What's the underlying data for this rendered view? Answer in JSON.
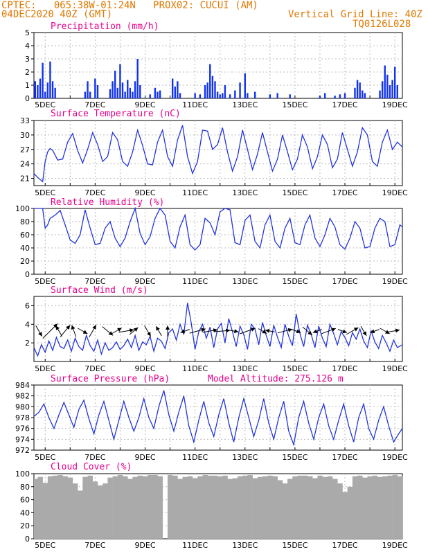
{
  "header": {
    "line1_left": "CPTEC:   065:38W-01:24N   PROX02: CUCUI (AM)",
    "line2_left": "04DEC2020 40Z (GMT)",
    "line2_right": "Vertical Grid Line: 40Z",
    "line3_right": "TQ0126L028"
  },
  "colors": {
    "series": "#2233dd",
    "bars": "#1133ee",
    "cloud": "#aaaaaa",
    "title": "#e8008a",
    "header": "#e07800"
  },
  "chart_data": [
    {
      "id": "precip",
      "type": "bar",
      "title": "Precipitation (mm/h)",
      "ylim": [
        0,
        5
      ],
      "yticks": [
        0,
        1,
        2,
        3,
        4,
        5
      ],
      "x_ticks": [
        "5DEC",
        "7DEC",
        "9DEC",
        "11DEC",
        "13DEC",
        "15DEC",
        "17DEC",
        "19DEC"
      ],
      "x_start_day": 4.55,
      "x_end_day": 19.3,
      "x": [
        4.6,
        4.7,
        4.8,
        4.9,
        5.0,
        5.1,
        5.2,
        5.3,
        5.4,
        6.6,
        6.7,
        6.8,
        7.0,
        7.1,
        7.6,
        7.7,
        7.8,
        7.9,
        8.0,
        8.1,
        8.2,
        8.3,
        8.4,
        8.5,
        8.6,
        8.7,
        8.8,
        9.2,
        9.4,
        9.5,
        9.6,
        10.1,
        10.2,
        10.3,
        10.4,
        11.0,
        11.2,
        11.4,
        11.5,
        11.6,
        11.7,
        11.8,
        11.9,
        12.0,
        12.1,
        12.2,
        12.4,
        12.6,
        12.8,
        13.0,
        13.1,
        13.4,
        14.0,
        14.3,
        14.8,
        16.0,
        16.2,
        16.6,
        16.8,
        17.0,
        17.4,
        17.5,
        17.6,
        17.7,
        17.8,
        18.4,
        18.5,
        18.6,
        18.7,
        18.8,
        18.9,
        19.0,
        19.1
      ],
      "values": [
        1.3,
        1.0,
        1.5,
        2.7,
        0.5,
        1.2,
        2.8,
        1.3,
        0.8,
        0.5,
        1.3,
        0.5,
        1.5,
        1.0,
        0.7,
        1.3,
        2.1,
        0.8,
        2.6,
        1.2,
        0.5,
        1.4,
        0.8,
        0.5,
        1.3,
        3.0,
        1.0,
        0.3,
        0.8,
        0.5,
        0.6,
        1.5,
        0.9,
        1.3,
        0.4,
        0.4,
        0.3,
        1.0,
        1.2,
        2.6,
        1.7,
        1.3,
        0.5,
        0.3,
        0.4,
        1.0,
        0.3,
        0.6,
        1.2,
        1.9,
        0.4,
        0.5,
        0.3,
        0.4,
        0.3,
        0.2,
        0.4,
        0.2,
        0.3,
        0.4,
        0.8,
        1.4,
        1.2,
        0.6,
        0.4,
        0.6,
        1.3,
        2.5,
        1.8,
        1.0,
        1.4,
        2.4,
        1.0
      ]
    },
    {
      "id": "temp",
      "type": "line",
      "title": "Surface Temperature (nC)",
      "ylim": [
        19.5,
        33
      ],
      "yticks": [
        21,
        24,
        27,
        30,
        33
      ],
      "x_ticks": [
        "5DEC",
        "7DEC",
        "9DEC",
        "11DEC",
        "13DEC",
        "15DEC",
        "17DEC",
        "19DEC"
      ],
      "x_start_day": 4.55,
      "x_end_day": 19.3,
      "x": [
        4.55,
        4.7,
        4.9,
        5.0,
        5.1,
        5.2,
        5.3,
        5.5,
        5.7,
        5.9,
        6.1,
        6.3,
        6.5,
        6.7,
        6.9,
        7.1,
        7.3,
        7.5,
        7.7,
        7.9,
        8.1,
        8.3,
        8.5,
        8.7,
        8.9,
        9.1,
        9.3,
        9.5,
        9.7,
        9.9,
        10.1,
        10.3,
        10.5,
        10.7,
        10.9,
        11.1,
        11.3,
        11.5,
        11.7,
        11.9,
        12.1,
        12.3,
        12.5,
        12.7,
        12.9,
        13.1,
        13.3,
        13.5,
        13.7,
        13.9,
        14.1,
        14.3,
        14.5,
        14.7,
        14.9,
        15.1,
        15.3,
        15.5,
        15.7,
        15.9,
        16.1,
        16.3,
        16.5,
        16.7,
        16.9,
        17.1,
        17.3,
        17.5,
        17.7,
        17.9,
        18.1,
        18.3,
        18.5,
        18.7,
        18.9,
        19.1,
        19.3
      ],
      "values": [
        22.0,
        21.2,
        20.3,
        24.5,
        26.5,
        27.2,
        26.8,
        24.8,
        25.0,
        28.5,
        30.3,
        26.8,
        24.2,
        27.0,
        30.5,
        28.0,
        24.5,
        25.5,
        30.5,
        29.0,
        24.5,
        23.5,
        26.5,
        31.0,
        27.8,
        24.0,
        23.8,
        28.5,
        31.0,
        25.5,
        23.5,
        29.0,
        32.0,
        25.5,
        22.0,
        24.5,
        31.0,
        30.8,
        27.0,
        28.0,
        31.5,
        26.5,
        22.5,
        25.5,
        31.0,
        27.0,
        22.8,
        26.0,
        30.5,
        26.5,
        22.5,
        25.0,
        30.0,
        26.5,
        22.8,
        25.0,
        30.0,
        27.5,
        23.0,
        25.5,
        30.0,
        28.0,
        23.2,
        25.0,
        30.5,
        27.0,
        23.5,
        26.5,
        31.5,
        30.0,
        24.5,
        23.5,
        28.5,
        31.0,
        27.0,
        28.5,
        27.5
      ]
    },
    {
      "id": "rh",
      "type": "line",
      "title": "Relative Humidity (%)",
      "ylim": [
        0,
        100
      ],
      "yticks": [
        0,
        20,
        40,
        60,
        80,
        100
      ],
      "x_ticks": [
        "5DEC",
        "7DEC",
        "9DEC",
        "11DEC",
        "13DEC",
        "15DEC",
        "17DEC",
        "19DEC"
      ],
      "x_start_day": 4.55,
      "x_end_day": 19.3,
      "x": [
        4.55,
        4.7,
        4.9,
        5.0,
        5.1,
        5.2,
        5.4,
        5.6,
        5.8,
        6.0,
        6.2,
        6.4,
        6.6,
        6.8,
        7.0,
        7.2,
        7.4,
        7.6,
        7.8,
        8.0,
        8.2,
        8.4,
        8.6,
        8.8,
        9.0,
        9.2,
        9.4,
        9.6,
        9.8,
        10.0,
        10.2,
        10.4,
        10.6,
        10.8,
        11.0,
        11.2,
        11.4,
        11.6,
        11.8,
        12.0,
        12.2,
        12.4,
        12.6,
        12.8,
        13.0,
        13.2,
        13.4,
        13.6,
        13.8,
        14.0,
        14.2,
        14.4,
        14.6,
        14.8,
        15.0,
        15.2,
        15.4,
        15.6,
        15.8,
        16.0,
        16.2,
        16.4,
        16.6,
        16.8,
        17.0,
        17.2,
        17.4,
        17.6,
        17.8,
        18.0,
        18.2,
        18.4,
        18.6,
        18.8,
        19.0,
        19.2,
        19.3
      ],
      "values": [
        100,
        100,
        100,
        70,
        75,
        85,
        90,
        97,
        75,
        52,
        47,
        60,
        98,
        70,
        45,
        47,
        70,
        80,
        55,
        42,
        55,
        80,
        100,
        62,
        45,
        57,
        85,
        100,
        90,
        50,
        40,
        72,
        90,
        45,
        37,
        45,
        85,
        78,
        60,
        95,
        100,
        98,
        48,
        45,
        82,
        90,
        50,
        40,
        75,
        90,
        50,
        40,
        70,
        85,
        48,
        45,
        75,
        90,
        55,
        42,
        60,
        85,
        72,
        45,
        38,
        55,
        80,
        70,
        40,
        42,
        70,
        85,
        80,
        42,
        45,
        75,
        72
      ]
    },
    {
      "id": "wind",
      "type": "line",
      "title": "Surface Wind (m/s)",
      "ylim": [
        0,
        7
      ],
      "yticks": [
        2,
        4,
        6
      ],
      "x_ticks": [
        "5DEC",
        "7DEC",
        "9DEC",
        "11DEC",
        "13DEC",
        "15DEC",
        "17DEC",
        "19DEC"
      ],
      "x_start_day": 4.55,
      "x_end_day": 19.3,
      "x": [
        4.55,
        4.7,
        4.85,
        5.0,
        5.15,
        5.3,
        5.45,
        5.6,
        5.75,
        5.9,
        6.05,
        6.2,
        6.35,
        6.5,
        6.65,
        6.8,
        6.95,
        7.1,
        7.25,
        7.4,
        7.55,
        7.7,
        7.85,
        8.0,
        8.15,
        8.3,
        8.45,
        8.6,
        8.75,
        8.9,
        9.05,
        9.2,
        9.35,
        9.5,
        9.65,
        9.8,
        9.95,
        10.1,
        10.25,
        10.4,
        10.55,
        10.7,
        10.85,
        11.0,
        11.15,
        11.3,
        11.45,
        11.6,
        11.75,
        11.9,
        12.05,
        12.2,
        12.35,
        12.5,
        12.65,
        12.8,
        12.95,
        13.1,
        13.25,
        13.4,
        13.55,
        13.7,
        13.85,
        14.0,
        14.15,
        14.3,
        14.45,
        14.6,
        14.75,
        14.9,
        15.05,
        15.2,
        15.35,
        15.5,
        15.65,
        15.8,
        15.95,
        16.1,
        16.25,
        16.4,
        16.55,
        16.7,
        16.85,
        17.0,
        17.15,
        17.3,
        17.45,
        17.6,
        17.75,
        17.9,
        18.05,
        18.2,
        18.35,
        18.5,
        18.65,
        18.8,
        18.95,
        19.1,
        19.3
      ],
      "values": [
        1.5,
        0.6,
        1.8,
        1.0,
        2.2,
        1.2,
        2.6,
        1.6,
        1.4,
        2.3,
        1.1,
        2.5,
        1.6,
        1.2,
        2.8,
        1.7,
        1.1,
        2.3,
        0.8,
        2.0,
        1.2,
        1.5,
        2.1,
        1.3,
        1.7,
        2.4,
        1.5,
        2.8,
        1.2,
        2.1,
        1.8,
        2.7,
        1.1,
        2.5,
        2.2,
        1.4,
        3.1,
        3.5,
        2.3,
        4.0,
        2.9,
        6.3,
        4.1,
        1.3,
        3.2,
        4.0,
        2.5,
        3.7,
        1.5,
        3.5,
        4.1,
        2.0,
        4.6,
        3.2,
        1.6,
        3.8,
        2.9,
        1.3,
        4.0,
        3.5,
        1.8,
        4.2,
        2.8,
        1.6,
        3.9,
        2.6,
        1.5,
        4.0,
        2.7,
        1.7,
        5.1,
        3.0,
        1.6,
        3.9,
        2.9,
        1.5,
        3.8,
        2.5,
        1.6,
        4.0,
        3.0,
        1.8,
        3.2,
        2.6,
        1.7,
        3.1,
        2.4,
        3.5,
        2.2,
        1.5,
        3.3,
        2.1,
        1.4,
        2.8,
        2.0,
        1.1,
        2.3,
        1.5,
        1.8
      ]
    },
    {
      "id": "pressure",
      "type": "line",
      "title": "Surface Pressure (hPa)",
      "annotation": "Model Altitude: 275.126 m",
      "ylim": [
        972,
        984
      ],
      "yticks": [
        972,
        974,
        976,
        978,
        980,
        982,
        984
      ],
      "x_ticks": [
        "5DEC",
        "7DEC",
        "9DEC",
        "11DEC",
        "13DEC",
        "15DEC",
        "17DEC",
        "19DEC"
      ],
      "x_start_day": 4.55,
      "x_end_day": 19.3,
      "x": [
        4.55,
        4.75,
        4.95,
        5.15,
        5.35,
        5.55,
        5.75,
        5.95,
        6.15,
        6.35,
        6.55,
        6.75,
        6.95,
        7.15,
        7.35,
        7.55,
        7.75,
        7.95,
        8.15,
        8.35,
        8.55,
        8.75,
        8.95,
        9.15,
        9.35,
        9.55,
        9.75,
        9.95,
        10.15,
        10.35,
        10.55,
        10.75,
        10.95,
        11.15,
        11.35,
        11.55,
        11.75,
        11.95,
        12.15,
        12.35,
        12.55,
        12.75,
        12.95,
        13.15,
        13.35,
        13.55,
        13.75,
        13.95,
        14.15,
        14.35,
        14.55,
        14.75,
        14.95,
        15.15,
        15.35,
        15.55,
        15.75,
        15.95,
        16.15,
        16.35,
        16.55,
        16.75,
        16.95,
        17.15,
        17.35,
        17.55,
        17.75,
        17.95,
        18.15,
        18.35,
        18.55,
        18.75,
        18.95,
        19.15,
        19.3
      ],
      "values": [
        978.2,
        979.0,
        980.5,
        978.0,
        976.0,
        978.5,
        980.8,
        978.5,
        976.2,
        979.5,
        981.2,
        977.8,
        975.0,
        978.5,
        981.0,
        977.5,
        974.0,
        977.5,
        981.0,
        978.0,
        975.5,
        978.0,
        981.5,
        978.0,
        976.0,
        980.0,
        983.0,
        978.5,
        975.5,
        979.0,
        982.0,
        976.5,
        973.5,
        977.5,
        981.0,
        977.0,
        974.5,
        978.5,
        981.5,
        977.0,
        973.5,
        978.0,
        981.5,
        978.0,
        974.5,
        977.5,
        981.5,
        977.0,
        974.0,
        978.0,
        981.0,
        975.5,
        973.0,
        978.0,
        981.0,
        977.0,
        974.0,
        978.0,
        980.5,
        976.5,
        974.0,
        977.5,
        980.5,
        976.5,
        973.5,
        978.0,
        980.5,
        976.0,
        974.0,
        977.5,
        980.0,
        976.5,
        973.5,
        975.0,
        976.0
      ]
    },
    {
      "id": "cloud",
      "type": "bar",
      "title": "Cloud Cover (%)",
      "ylim": [
        0,
        100
      ],
      "yticks": [
        0,
        20,
        40,
        60,
        80,
        100
      ],
      "x_ticks": [
        "5DEC",
        "7DEC",
        "9DEC",
        "11DEC",
        "13DEC",
        "15DEC",
        "17DEC",
        "19DEC"
      ],
      "x_start_day": 4.55,
      "x_end_day": 19.3,
      "x": [
        4.6,
        4.8,
        5.0,
        5.2,
        5.4,
        5.6,
        5.8,
        6.0,
        6.2,
        6.4,
        6.6,
        6.8,
        7.0,
        7.2,
        7.4,
        7.6,
        7.8,
        8.0,
        8.2,
        8.4,
        8.6,
        8.8,
        9.0,
        9.2,
        9.4,
        9.6,
        9.8,
        10.0,
        10.2,
        10.4,
        10.6,
        10.8,
        11.0,
        11.2,
        11.4,
        11.6,
        11.8,
        12.0,
        12.2,
        12.4,
        12.6,
        12.8,
        13.0,
        13.2,
        13.4,
        13.6,
        13.8,
        14.0,
        14.2,
        14.4,
        14.6,
        14.8,
        15.0,
        15.2,
        15.4,
        15.6,
        15.8,
        16.0,
        16.2,
        16.4,
        16.6,
        16.8,
        17.0,
        17.2,
        17.4,
        17.6,
        17.8,
        18.0,
        18.2,
        18.4,
        18.6,
        18.8,
        19.0,
        19.2
      ],
      "values": [
        92,
        95,
        86,
        96,
        97,
        98,
        96,
        94,
        85,
        74,
        95,
        97,
        88,
        82,
        85,
        94,
        96,
        98,
        96,
        92,
        95,
        97,
        96,
        98,
        98,
        96,
        0,
        98,
        97,
        92,
        95,
        96,
        93,
        96,
        98,
        97,
        97,
        96,
        97,
        92,
        93,
        96,
        97,
        98,
        93,
        95,
        96,
        97,
        96,
        90,
        85,
        92,
        96,
        97,
        97,
        96,
        93,
        97,
        95,
        96,
        92,
        85,
        72,
        80,
        96,
        97,
        94,
        96,
        97,
        95,
        96,
        97,
        98,
        96
      ]
    }
  ],
  "wind_arrows": [
    {
      "day": 4.75,
      "dir": 300,
      "len": 18
    },
    {
      "day": 5.2,
      "dir": 45,
      "len": 30
    },
    {
      "day": 5.55,
      "dir": 120,
      "len": 18
    },
    {
      "day": 5.8,
      "dir": 50,
      "len": 22
    },
    {
      "day": 6.15,
      "dir": 110,
      "len": 18
    },
    {
      "day": 6.5,
      "dir": 330,
      "len": 16
    },
    {
      "day": 6.9,
      "dir": 60,
      "len": 20
    },
    {
      "day": 7.5,
      "dir": 320,
      "len": 20
    },
    {
      "day": 7.85,
      "dir": 30,
      "len": 18
    },
    {
      "day": 8.25,
      "dir": 10,
      "len": 22
    },
    {
      "day": 8.55,
      "dir": 40,
      "len": 16
    },
    {
      "day": 9.1,
      "dir": 300,
      "len": 18
    },
    {
      "day": 9.55,
      "dir": 120,
      "len": 16
    },
    {
      "day": 9.9,
      "dir": 90,
      "len": 16
    },
    {
      "day": 10.6,
      "dir": 200,
      "len": 14
    },
    {
      "day": 11.1,
      "dir": 15,
      "len": 24
    },
    {
      "day": 11.6,
      "dir": 10,
      "len": 22
    },
    {
      "day": 12.1,
      "dir": 5,
      "len": 22
    },
    {
      "day": 12.55,
      "dir": 350,
      "len": 14
    },
    {
      "day": 13.1,
      "dir": 20,
      "len": 24
    },
    {
      "day": 13.7,
      "dir": 330,
      "len": 14
    },
    {
      "day": 14.0,
      "dir": 170,
      "len": 14
    },
    {
      "day": 14.6,
      "dir": 15,
      "len": 22
    },
    {
      "day": 15.05,
      "dir": 340,
      "len": 14
    },
    {
      "day": 15.5,
      "dir": 320,
      "len": 18
    },
    {
      "day": 15.9,
      "dir": 200,
      "len": 14
    },
    {
      "day": 16.35,
      "dir": 20,
      "len": 22
    },
    {
      "day": 16.9,
      "dir": 340,
      "len": 14
    },
    {
      "day": 17.3,
      "dir": 30,
      "len": 20
    },
    {
      "day": 17.75,
      "dir": 300,
      "len": 16
    },
    {
      "day": 18.2,
      "dir": 200,
      "len": 14
    },
    {
      "day": 18.6,
      "dir": 330,
      "len": 16
    },
    {
      "day": 18.95,
      "dir": 10,
      "len": 18
    }
  ]
}
